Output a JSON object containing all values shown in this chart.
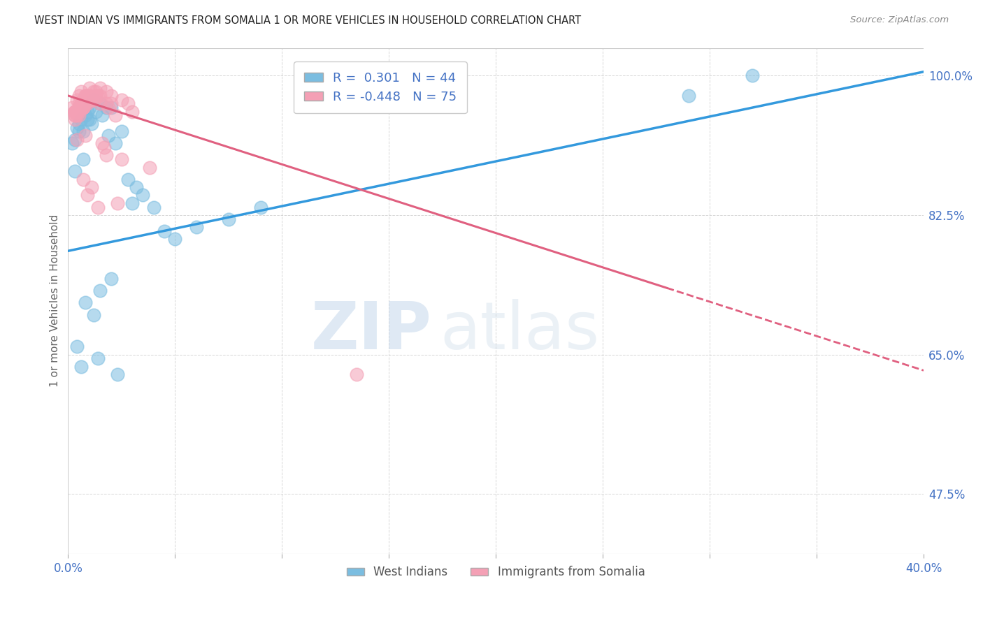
{
  "title": "WEST INDIAN VS IMMIGRANTS FROM SOMALIA 1 OR MORE VEHICLES IN HOUSEHOLD CORRELATION CHART",
  "source": "Source: ZipAtlas.com",
  "ylabel": "1 or more Vehicles in Household",
  "xmin": 0.0,
  "xmax": 40.0,
  "ymin": 40.0,
  "ymax": 103.5,
  "yticks": [
    47.5,
    65.0,
    82.5,
    100.0
  ],
  "ytick_labels": [
    "47.5%",
    "65.0%",
    "82.5%",
    "100.0%"
  ],
  "blue_R": 0.301,
  "blue_N": 44,
  "pink_R": -0.448,
  "pink_N": 75,
  "blue_label": "West Indians",
  "pink_label": "Immigrants from Somalia",
  "blue_color": "#7bbde0",
  "pink_color": "#f4a0b5",
  "blue_line_color": "#3399dd",
  "pink_line_color": "#e06080",
  "axis_color": "#4472c4",
  "title_color": "#222222",
  "watermark_zip": "ZIP",
  "watermark_atlas": "atlas",
  "blue_line_x0": 0.0,
  "blue_line_y0": 78.0,
  "blue_line_x1": 40.0,
  "blue_line_y1": 100.5,
  "pink_line_x0": 0.0,
  "pink_line_y0": 97.5,
  "pink_line_x1": 40.0,
  "pink_line_y1": 63.0,
  "pink_solid_end": 28.0,
  "grid_color": "#cccccc",
  "blue_scatter_x": [
    0.5,
    0.7,
    0.9,
    1.0,
    1.2,
    0.3,
    0.6,
    0.8,
    1.5,
    0.4,
    1.1,
    1.3,
    1.8,
    0.2,
    0.9,
    1.6,
    2.0,
    0.5,
    1.0,
    2.2,
    2.5,
    1.9,
    0.3,
    0.7,
    3.0,
    3.5,
    4.0,
    3.2,
    2.8,
    4.5,
    5.0,
    6.0,
    7.5,
    9.0,
    2.0,
    1.5,
    0.8,
    1.2,
    0.4,
    1.4,
    0.6,
    2.3,
    29.0,
    32.0
  ],
  "blue_scatter_y": [
    94.0,
    93.0,
    95.5,
    96.0,
    97.0,
    92.0,
    94.5,
    95.0,
    96.5,
    93.5,
    94.0,
    95.5,
    96.0,
    91.5,
    94.5,
    95.0,
    96.0,
    93.0,
    94.5,
    91.5,
    93.0,
    92.5,
    88.0,
    89.5,
    84.0,
    85.0,
    83.5,
    86.0,
    87.0,
    80.5,
    79.5,
    81.0,
    82.0,
    83.5,
    74.5,
    73.0,
    71.5,
    70.0,
    66.0,
    64.5,
    63.5,
    62.5,
    97.5,
    100.0
  ],
  "pink_scatter_x": [
    0.2,
    0.3,
    0.4,
    0.5,
    0.6,
    0.7,
    0.8,
    0.9,
    1.0,
    0.3,
    0.5,
    0.7,
    1.0,
    1.2,
    0.4,
    0.6,
    0.9,
    1.3,
    0.5,
    0.8,
    1.5,
    0.3,
    0.6,
    1.0,
    1.8,
    0.4,
    0.7,
    2.0,
    0.5,
    1.5,
    2.5,
    0.8,
    0.3,
    0.6,
    1.3,
    0.7,
    1.8,
    1.1,
    2.8,
    0.4,
    0.6,
    1.0,
    2.0,
    1.4,
    0.4,
    0.8,
    1.5,
    1.9,
    0.3,
    0.7,
    1.2,
    0.5,
    0.9,
    2.2,
    1.0,
    0.3,
    0.6,
    1.3,
    3.0,
    1.7,
    3.8,
    1.8,
    1.1,
    0.4,
    2.3,
    0.7,
    0.9,
    1.4,
    0.3,
    0.5,
    0.9,
    13.5,
    2.5,
    1.6,
    0.8
  ],
  "pink_scatter_y": [
    96.0,
    95.5,
    97.0,
    97.5,
    98.0,
    96.5,
    97.0,
    97.5,
    98.5,
    95.0,
    96.0,
    97.0,
    97.5,
    98.0,
    95.5,
    96.5,
    97.0,
    98.0,
    96.0,
    97.5,
    98.5,
    95.0,
    96.5,
    97.0,
    98.0,
    95.5,
    96.0,
    97.5,
    95.0,
    96.5,
    97.0,
    97.5,
    95.5,
    96.0,
    97.5,
    96.0,
    96.5,
    97.0,
    96.5,
    95.5,
    96.0,
    97.0,
    96.5,
    97.5,
    95.0,
    96.5,
    97.5,
    96.0,
    95.5,
    96.0,
    97.0,
    96.5,
    97.5,
    95.0,
    97.0,
    95.5,
    96.0,
    97.5,
    95.5,
    91.0,
    88.5,
    90.0,
    86.0,
    92.0,
    84.0,
    87.0,
    85.0,
    83.5,
    94.5,
    95.5,
    96.5,
    62.5,
    89.5,
    91.5,
    92.5
  ]
}
